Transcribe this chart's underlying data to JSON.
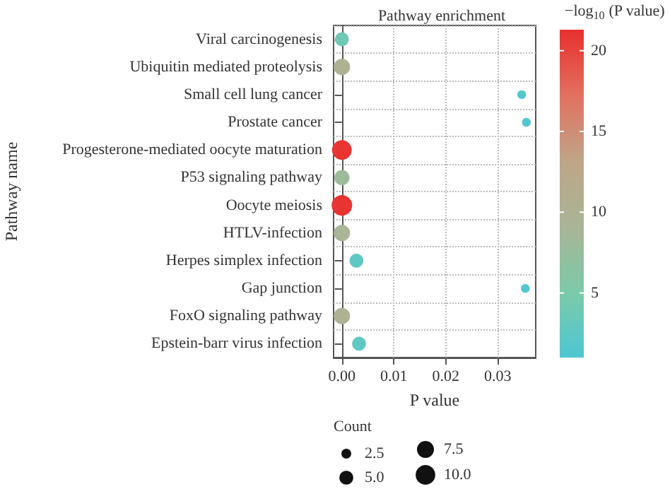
{
  "chart_data": {
    "type": "bubble",
    "title": "Pathway enrichment",
    "xlabel": "P value",
    "ylabel": "Pathway name",
    "clabel": "−log$_{10}$ (P value)",
    "legend_title": "Count",
    "orientation": "horizontal",
    "categories": [
      "Viral carcinogenesis",
      "Ubiquitin mediated proteolysis",
      "Small cell lung cancer",
      "Prostate cancer",
      "Progesterone-mediated oocyte maturation",
      "P53 signaling pathway",
      "Oocyte meiosis",
      "HTLV-infection",
      "Herpes simplex infection",
      "Gap junction",
      "FoxO signaling pathway",
      "Epstein-barr virus infection"
    ],
    "values": [
      0.0,
      0.0,
      0.0346,
      0.0355,
      0.0,
      0.0,
      0.0,
      0.0,
      0.0028,
      0.0353,
      0.0,
      0.0033
    ],
    "sizes": [
      5,
      7,
      2,
      2,
      10,
      6,
      11,
      7,
      5,
      2,
      7,
      5
    ],
    "cvalues": [
      4,
      10,
      1.5,
      1.5,
      21,
      8,
      21,
      9,
      2.6,
      1.5,
      10,
      2.5
    ],
    "size_legend": [
      2.5,
      {
        "value": 5,
        "label": "5.0"
      },
      7.5,
      {
        "value": 10,
        "label": "10.0"
      }
    ],
    "clim": [
      1,
      21.3
    ],
    "cticks": [
      5,
      10,
      15,
      20
    ],
    "xlim": [
      -0.0016,
      0.0373
    ],
    "xticks": [
      {
        "value": 0,
        "label": "0.00"
      },
      {
        "value": 0.01,
        "label": "0.01"
      },
      {
        "value": 0.02,
        "label": "0.02"
      },
      {
        "value": 0.03,
        "label": "0.03"
      }
    ],
    "grid": true,
    "marker": "circle"
  }
}
